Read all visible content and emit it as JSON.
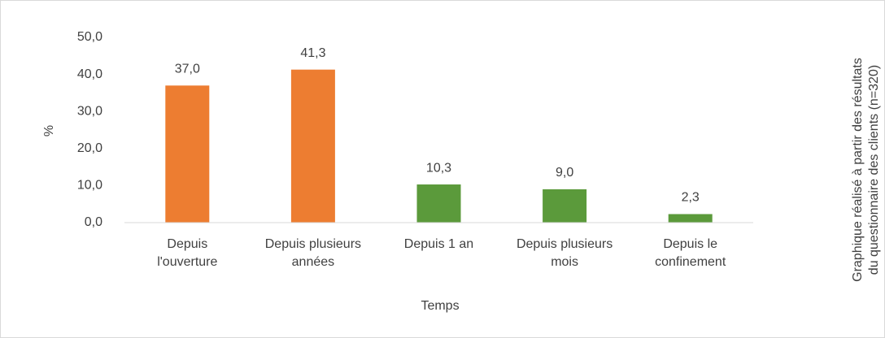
{
  "chart_data": {
    "type": "bar",
    "categories": [
      "Depuis\nl'ouverture",
      "Depuis plusieurs\nannées",
      "Depuis 1 an",
      "Depuis plusieurs\nmois",
      "Depuis le\nconfinement"
    ],
    "values": [
      37.0,
      41.3,
      10.3,
      9.0,
      2.3
    ],
    "value_labels": [
      "37,0",
      "41,3",
      "10,3",
      "9,0",
      "2,3"
    ],
    "colors": [
      "#ed7d31",
      "#ed7d31",
      "#5b9a3b",
      "#5b9a3b",
      "#5b9a3b"
    ],
    "ylim": [
      0,
      50
    ],
    "yticks": [
      {
        "value": 0,
        "label": "0,0"
      },
      {
        "value": 10,
        "label": "10,0"
      },
      {
        "value": 20,
        "label": "20,0"
      },
      {
        "value": 30,
        "label": "30,0"
      },
      {
        "value": 40,
        "label": "40,0"
      },
      {
        "value": 50,
        "label": "50,0"
      }
    ],
    "y_label": "%",
    "x_label": "Temps",
    "annotation": "Graphique réalisé à partir des résultats\ndu questionnaire des clients (n=320)",
    "grid": false
  }
}
